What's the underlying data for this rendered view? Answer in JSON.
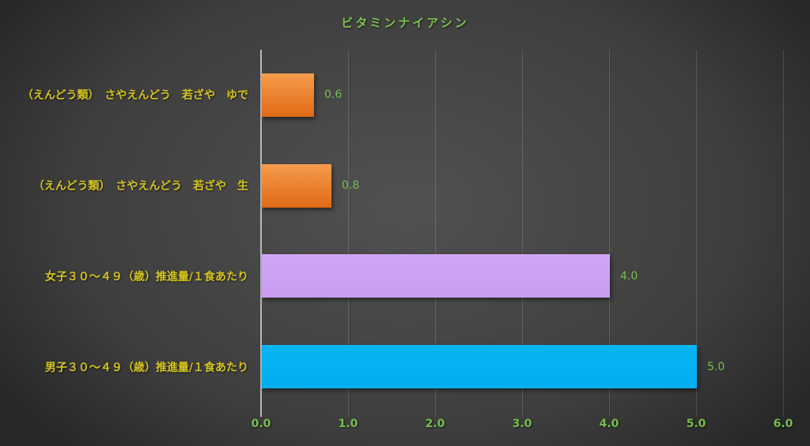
{
  "title": "ビタミンナイアシン",
  "colors": {
    "background_center": "#515151",
    "background_mid": "#3e3e3e",
    "background_edge": "#282828",
    "title_green": "#7ac24e",
    "label_yellow": "#d5c41f",
    "value_green": "#76be4c",
    "axis_line": "#b9b9b9",
    "gridline": "rgba(255,255,255,0.14)",
    "bar_orange_top": "#f59c4d",
    "bar_orange_bottom": "#e06a15",
    "bar_purple": "#c99cf2",
    "bar_blue": "#00aeef"
  },
  "chart_data": {
    "type": "bar",
    "orientation": "horizontal",
    "title": "ビタミンナイアシン",
    "categories": [
      "（えんどう類）　さやえんどう　若ざや　ゆで",
      "（えんどう類）　さやえんどう　若ざや　生",
      "女子３０～４９（歳）推進量/１食あたり",
      "男子３０～４９（歳）推進量/１食あたり"
    ],
    "values": [
      0.6,
      0.8,
      4.0,
      5.0
    ],
    "value_labels": [
      "0.6",
      "0.8",
      "4.0",
      "5.0"
    ],
    "bar_colors": [
      "orange",
      "orange",
      "purple",
      "blue"
    ],
    "xlabel": "",
    "ylabel": "",
    "xlim": [
      0,
      6
    ],
    "x_ticks": [
      0,
      1,
      2,
      3,
      4,
      5,
      6
    ],
    "x_tick_labels": [
      "0.0",
      "1.0",
      "2.0",
      "3.0",
      "4.0",
      "5.0",
      "6.0"
    ],
    "grid": "vertical",
    "legend": "none"
  }
}
